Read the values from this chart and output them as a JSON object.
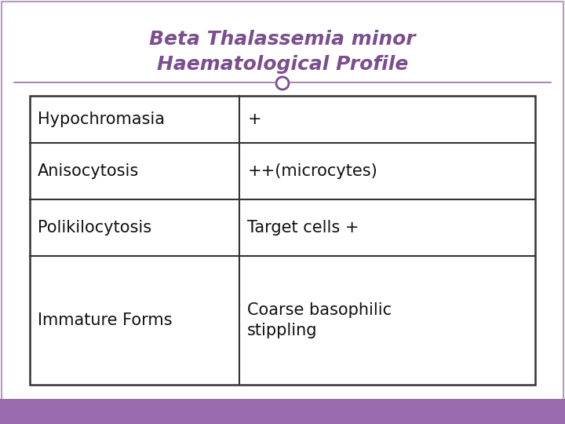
{
  "title_line1": "Beta Thalassemia minor",
  "title_line2": "Haematological Profile",
  "title_color": "#7B4F8E",
  "title_fontsize": 18,
  "title_style": "italic",
  "title_weight": "bold",
  "bg_color": "#FFFFFF",
  "footer_color": "#9B6BB0",
  "outer_border_color": "#B0A0B8",
  "table_rows": [
    [
      "Hypochromasia",
      "+"
    ],
    [
      "Anisocytosis",
      "++(microcytes)"
    ],
    [
      "Polikilocytosis",
      "Target cells +"
    ],
    [
      "Immature Forms",
      "Coarse basophilic\nstippling"
    ]
  ],
  "table_text_color": "#111111",
  "table_fontsize": 15,
  "border_color": "#333333",
  "header_line_color": "#9B6BB0",
  "circle_color": "#7B4F8E",
  "fig_width": 7.2,
  "fig_height": 5.4,
  "dpi": 100
}
